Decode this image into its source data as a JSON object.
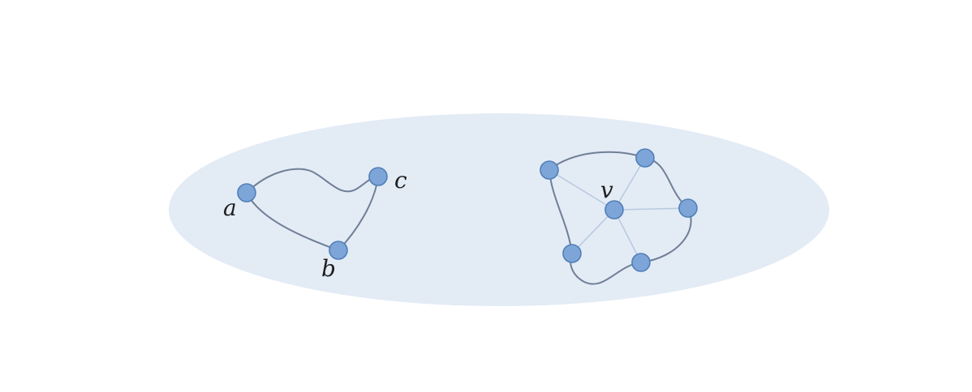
{
  "diagram": {
    "colors": {
      "region_fill": "#e3ebf5",
      "vertex_fill": "#7ea5d8",
      "edge_stroke": "#6f7f97",
      "spoke_stroke": "#b6c8de",
      "label": "#1f1f1f"
    },
    "labels": {
      "a": "a",
      "b": "b",
      "c": "c",
      "v": "v"
    }
  }
}
